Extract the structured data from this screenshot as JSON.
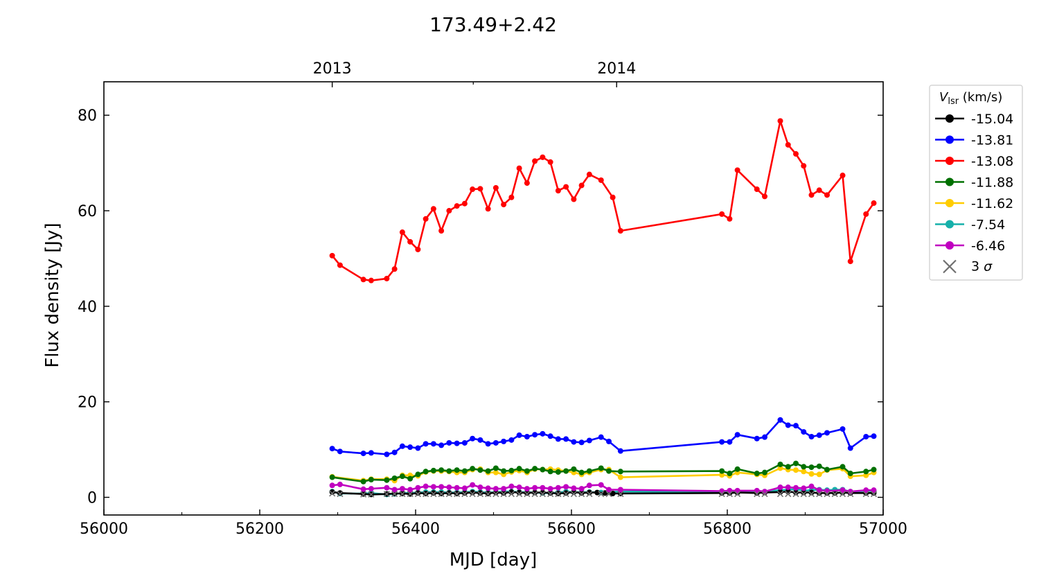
{
  "chart_data": {
    "type": "line",
    "title": "173.49+2.42",
    "xlabel": "MJD [day]",
    "ylabel": "Flux density [Jy]",
    "xlim": [
      56000,
      57000
    ],
    "ylim": [
      -3.7,
      87.0
    ],
    "x_ticks": [
      56000,
      56200,
      56400,
      56600,
      56800,
      57000
    ],
    "x_minor_ticks": [
      56100,
      56300,
      56500,
      56700,
      56900
    ],
    "y_ticks": [
      0,
      20,
      40,
      60,
      80
    ],
    "top_axis": {
      "ticks": [
        {
          "x": 56293,
          "label": "2013"
        },
        {
          "x": 56658,
          "label": "2014"
        }
      ],
      "minor": [
        56474
      ]
    },
    "grid": false,
    "legend": {
      "title_main": "V",
      "title_sub": "lsr",
      "title_unit": " (km/s)",
      "placement": "outside-right-top"
    },
    "series": [
      {
        "name": "-15.04",
        "color": "#000000",
        "x": [
          56293,
          56303,
          56333,
          56343,
          56363,
          56373,
          56383,
          56393,
          56403,
          56413,
          56423,
          56433,
          56443,
          56453,
          56463,
          56473,
          56483,
          56493,
          56503,
          56513,
          56523,
          56533,
          56543,
          56553,
          56563,
          56573,
          56583,
          56593,
          56603,
          56613,
          56623,
          56633,
          56643,
          56653,
          56663,
          56793,
          56803,
          56813,
          56838,
          56848,
          56868,
          56878,
          56888,
          56898,
          56908,
          56918,
          56928,
          56938,
          56948,
          56958,
          56978,
          56988
        ],
        "values": [
          1.1,
          0.9,
          0.7,
          0.6,
          0.7,
          0.8,
          0.8,
          0.7,
          0.9,
          0.8,
          0.9,
          0.8,
          0.9,
          0.8,
          0.9,
          1.0,
          0.9,
          0.8,
          1.0,
          0.9,
          1.1,
          1.0,
          0.9,
          1.0,
          1.0,
          0.9,
          0.8,
          0.9,
          1.1,
          0.9,
          1.0,
          1.0,
          0.9,
          0.8,
          0.8,
          0.9,
          0.9,
          1.0,
          0.9,
          1.0,
          1.1,
          1.2,
          1.0,
          1.0,
          1.0,
          0.9,
          0.9,
          0.9,
          1.0,
          0.9,
          0.9,
          0.9
        ]
      },
      {
        "name": "-13.81",
        "color": "#0000ff",
        "x": [
          56293,
          56303,
          56333,
          56343,
          56363,
          56373,
          56383,
          56393,
          56403,
          56413,
          56423,
          56433,
          56443,
          56453,
          56463,
          56473,
          56483,
          56493,
          56503,
          56513,
          56523,
          56533,
          56543,
          56553,
          56563,
          56573,
          56583,
          56593,
          56603,
          56613,
          56623,
          56638,
          56648,
          56663,
          56793,
          56803,
          56813,
          56838,
          56848,
          56868,
          56878,
          56888,
          56898,
          56908,
          56918,
          56928,
          56948,
          56958,
          56978,
          56988
        ],
        "values": [
          10.2,
          9.6,
          9.2,
          9.3,
          9.0,
          9.4,
          10.7,
          10.5,
          10.3,
          11.2,
          11.2,
          10.9,
          11.4,
          11.3,
          11.4,
          12.3,
          12.0,
          11.2,
          11.4,
          11.7,
          12.0,
          13.0,
          12.7,
          13.1,
          13.3,
          12.8,
          12.2,
          12.2,
          11.6,
          11.5,
          11.9,
          12.6,
          11.7,
          9.7,
          11.6,
          11.6,
          13.1,
          12.3,
          12.6,
          16.2,
          15.1,
          15.0,
          13.7,
          12.7,
          13.0,
          13.5,
          14.3,
          10.3,
          12.7,
          12.8
        ]
      },
      {
        "name": "-13.08",
        "color": "#ff0000",
        "x": [
          56293,
          56303,
          56333,
          56343,
          56363,
          56373,
          56383,
          56393,
          56403,
          56413,
          56423,
          56433,
          56443,
          56453,
          56463,
          56473,
          56483,
          56493,
          56503,
          56513,
          56523,
          56533,
          56543,
          56553,
          56563,
          56573,
          56583,
          56593,
          56603,
          56613,
          56623,
          56638,
          56653,
          56663,
          56793,
          56803,
          56813,
          56838,
          56848,
          56868,
          56878,
          56888,
          56898,
          56908,
          56918,
          56928,
          56948,
          56958,
          56978,
          56988
        ],
        "values": [
          50.6,
          48.6,
          45.6,
          45.4,
          45.8,
          47.8,
          55.5,
          53.5,
          51.9,
          58.3,
          60.4,
          55.8,
          60.0,
          61.0,
          61.5,
          64.5,
          64.6,
          60.4,
          64.8,
          61.3,
          62.8,
          68.9,
          65.8,
          70.4,
          71.2,
          70.2,
          64.2,
          65.0,
          62.4,
          65.3,
          67.6,
          66.4,
          62.8,
          55.8,
          59.3,
          58.3,
          68.5,
          64.5,
          63.0,
          78.8,
          73.8,
          71.9,
          69.4,
          63.3,
          64.3,
          63.3,
          67.4,
          49.4,
          59.3,
          61.6
        ]
      },
      {
        "name": "-11.88",
        "color": "#007000",
        "x": [
          56293,
          56333,
          56343,
          56363,
          56373,
          56383,
          56393,
          56403,
          56413,
          56423,
          56433,
          56443,
          56453,
          56463,
          56473,
          56483,
          56493,
          56503,
          56513,
          56523,
          56533,
          56543,
          56553,
          56563,
          56573,
          56583,
          56593,
          56603,
          56613,
          56623,
          56638,
          56648,
          56663,
          56793,
          56803,
          56813,
          56838,
          56848,
          56868,
          56878,
          56888,
          56898,
          56908,
          56918,
          56928,
          56948,
          56958,
          56978,
          56988
        ],
        "values": [
          4.2,
          3.3,
          3.7,
          3.6,
          4.0,
          4.4,
          3.9,
          4.8,
          5.4,
          5.6,
          5.7,
          5.5,
          5.7,
          5.5,
          6.0,
          5.7,
          5.5,
          6.1,
          5.5,
          5.6,
          6.0,
          5.5,
          6.0,
          5.8,
          5.4,
          5.3,
          5.5,
          5.9,
          5.2,
          5.5,
          6.1,
          5.5,
          5.4,
          5.5,
          5.0,
          5.9,
          5.0,
          5.2,
          6.9,
          6.4,
          7.1,
          6.4,
          6.3,
          6.5,
          5.8,
          6.4,
          5.0,
          5.4,
          5.8
        ]
      },
      {
        "name": "-11.62",
        "color": "#ffcc00",
        "x": [
          56293,
          56333,
          56343,
          56363,
          56373,
          56383,
          56393,
          56403,
          56413,
          56423,
          56433,
          56443,
          56453,
          56463,
          56473,
          56483,
          56493,
          56503,
          56513,
          56523,
          56533,
          56543,
          56553,
          56563,
          56573,
          56583,
          56593,
          56603,
          56613,
          56623,
          56638,
          56648,
          56663,
          56793,
          56803,
          56813,
          56838,
          56848,
          56868,
          56878,
          56888,
          56898,
          56908,
          56918,
          56928,
          56948,
          56958,
          56978,
          56988
        ],
        "values": [
          4.3,
          3.5,
          3.8,
          3.8,
          3.5,
          4.6,
          4.6,
          4.5,
          5.3,
          5.5,
          5.5,
          5.4,
          5.2,
          5.2,
          5.8,
          5.9,
          5.2,
          5.2,
          4.8,
          5.3,
          5.6,
          5.2,
          5.9,
          5.8,
          5.9,
          5.7,
          5.5,
          5.2,
          4.8,
          5.2,
          5.8,
          5.8,
          4.2,
          4.7,
          4.5,
          5.2,
          4.8,
          4.6,
          6.1,
          5.8,
          5.7,
          5.4,
          4.9,
          4.8,
          5.7,
          6.0,
          4.4,
          4.6,
          5.2
        ]
      },
      {
        "name": "-7.54",
        "color": "#16b0aa",
        "x": [
          56293,
          56303,
          56333,
          56343,
          56363,
          56373,
          56383,
          56393,
          56403,
          56413,
          56423,
          56433,
          56443,
          56453,
          56463,
          56473,
          56483,
          56493,
          56503,
          56513,
          56523,
          56533,
          56543,
          56553,
          56563,
          56573,
          56583,
          56593,
          56603,
          56613,
          56623,
          56638,
          56648,
          56663,
          56793,
          56803,
          56813,
          56838,
          56848,
          56868,
          56878,
          56888,
          56898,
          56908,
          56918,
          56928,
          56938,
          56948,
          56958,
          56978,
          56988
        ],
        "values": [
          1.2,
          0.8,
          0.8,
          0.9,
          0.6,
          0.7,
          0.9,
          0.9,
          1.0,
          1.1,
          1.1,
          1.1,
          1.0,
          1.0,
          1.1,
          1.2,
          1.1,
          1.0,
          1.1,
          1.2,
          1.2,
          1.1,
          1.1,
          1.0,
          0.9,
          0.9,
          1.0,
          1.2,
          1.1,
          1.1,
          1.1,
          1.0,
          1.1,
          1.2,
          1.1,
          1.2,
          1.3,
          1.2,
          1.2,
          1.5,
          1.6,
          1.7,
          1.4,
          1.5,
          1.6,
          1.5,
          1.6,
          1.6,
          1.2,
          1.3,
          1.3
        ]
      },
      {
        "name": "-6.46",
        "color": "#c000c0",
        "x": [
          56293,
          56303,
          56333,
          56343,
          56363,
          56373,
          56383,
          56393,
          56403,
          56413,
          56423,
          56433,
          56443,
          56453,
          56463,
          56473,
          56483,
          56493,
          56503,
          56513,
          56523,
          56533,
          56543,
          56553,
          56563,
          56573,
          56583,
          56593,
          56603,
          56613,
          56623,
          56638,
          56648,
          56663,
          56793,
          56803,
          56813,
          56838,
          56848,
          56868,
          56878,
          56888,
          56898,
          56908,
          56918,
          56928,
          56948,
          56958,
          56978,
          56988
        ],
        "values": [
          2.5,
          2.7,
          1.7,
          1.8,
          2.0,
          1.6,
          1.8,
          1.6,
          2.0,
          2.3,
          2.2,
          2.2,
          2.1,
          2.0,
          1.9,
          2.6,
          2.1,
          1.9,
          1.8,
          1.8,
          2.3,
          2.1,
          1.8,
          2.0,
          2.0,
          1.8,
          2.0,
          2.2,
          1.9,
          1.8,
          2.5,
          2.6,
          1.6,
          1.6,
          1.3,
          1.4,
          1.4,
          1.4,
          1.2,
          2.1,
          2.1,
          2.0,
          1.9,
          2.3,
          1.5,
          1.3,
          1.5,
          1.2,
          1.5,
          1.5
        ]
      }
    ],
    "sigma_markers": {
      "name": "3 σ",
      "label_main": "3",
      "label_sym": "σ",
      "color": "#707070",
      "x": [
        56293,
        56303,
        56333,
        56343,
        56363,
        56373,
        56383,
        56393,
        56403,
        56413,
        56423,
        56433,
        56443,
        56453,
        56463,
        56473,
        56483,
        56493,
        56503,
        56513,
        56523,
        56533,
        56543,
        56553,
        56563,
        56573,
        56583,
        56593,
        56603,
        56613,
        56623,
        56638,
        56648,
        56663,
        56793,
        56803,
        56813,
        56838,
        56848,
        56868,
        56878,
        56888,
        56898,
        56908,
        56918,
        56928,
        56938,
        56948,
        56958,
        56978,
        56988
      ],
      "values": [
        0.8,
        0.7,
        0.6,
        0.6,
        0.7,
        0.7,
        0.7,
        0.7,
        0.7,
        0.7,
        0.7,
        0.7,
        0.7,
        0.7,
        0.7,
        0.7,
        0.7,
        0.7,
        0.7,
        0.7,
        0.7,
        0.7,
        0.7,
        0.7,
        0.7,
        0.7,
        0.7,
        0.7,
        0.7,
        0.7,
        0.7,
        0.7,
        0.7,
        0.7,
        0.7,
        0.7,
        0.7,
        0.7,
        0.7,
        0.7,
        0.7,
        0.7,
        0.7,
        0.7,
        0.7,
        0.7,
        0.7,
        0.7,
        0.7,
        0.7,
        0.7
      ]
    }
  }
}
